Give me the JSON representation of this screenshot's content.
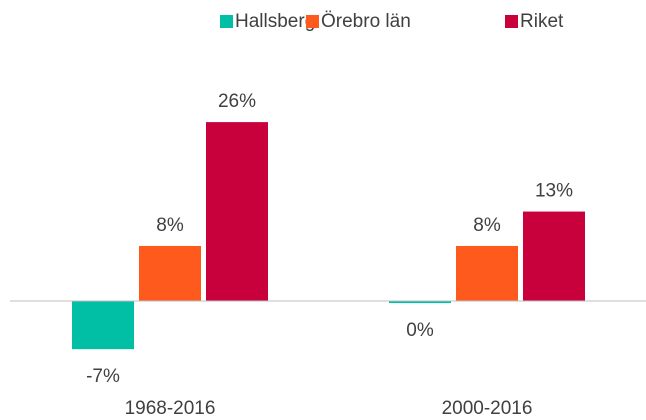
{
  "chart_data": {
    "type": "bar",
    "categories": [
      "1968-2016",
      "2000-2016"
    ],
    "series": [
      {
        "name": "Hallsberg",
        "color": "#00bfa5",
        "values": [
          -7,
          -0.3
        ],
        "value_labels": [
          "-7%",
          "0%"
        ]
      },
      {
        "name": "Örebro län",
        "color": "#ff5a1e",
        "values": [
          8,
          8
        ],
        "value_labels": [
          "8%",
          "8%"
        ]
      },
      {
        "name": "Riket",
        "color": "#c8003c",
        "values": [
          26,
          13
        ],
        "value_labels": [
          "26%",
          "13%"
        ]
      }
    ],
    "legend": "top"
  }
}
